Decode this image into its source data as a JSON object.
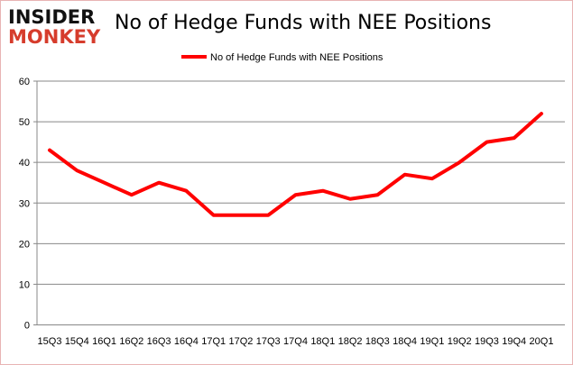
{
  "logo": {
    "line1": "INSIDER",
    "line2": "MONKEY"
  },
  "chart_data": {
    "type": "line",
    "title": "No of Hedge Funds with NEE Positions",
    "categories": [
      "15Q3",
      "15Q4",
      "16Q1",
      "16Q2",
      "16Q3",
      "16Q4",
      "17Q1",
      "17Q2",
      "17Q3",
      "17Q4",
      "18Q1",
      "18Q2",
      "18Q3",
      "18Q4",
      "19Q1",
      "19Q2",
      "19Q3",
      "19Q4",
      "20Q1"
    ],
    "series": [
      {
        "name": "No of Hedge Funds with NEE Positions",
        "color": "#ff0000",
        "values": [
          43,
          38,
          35,
          32,
          35,
          33,
          27,
          27,
          27,
          32,
          33,
          31,
          32,
          37,
          36,
          40,
          45,
          46,
          52
        ]
      }
    ],
    "ylim": [
      0,
      60
    ],
    "yticks": [
      0,
      10,
      20,
      30,
      40,
      50,
      60
    ],
    "grid": true,
    "legend": "top-center"
  }
}
